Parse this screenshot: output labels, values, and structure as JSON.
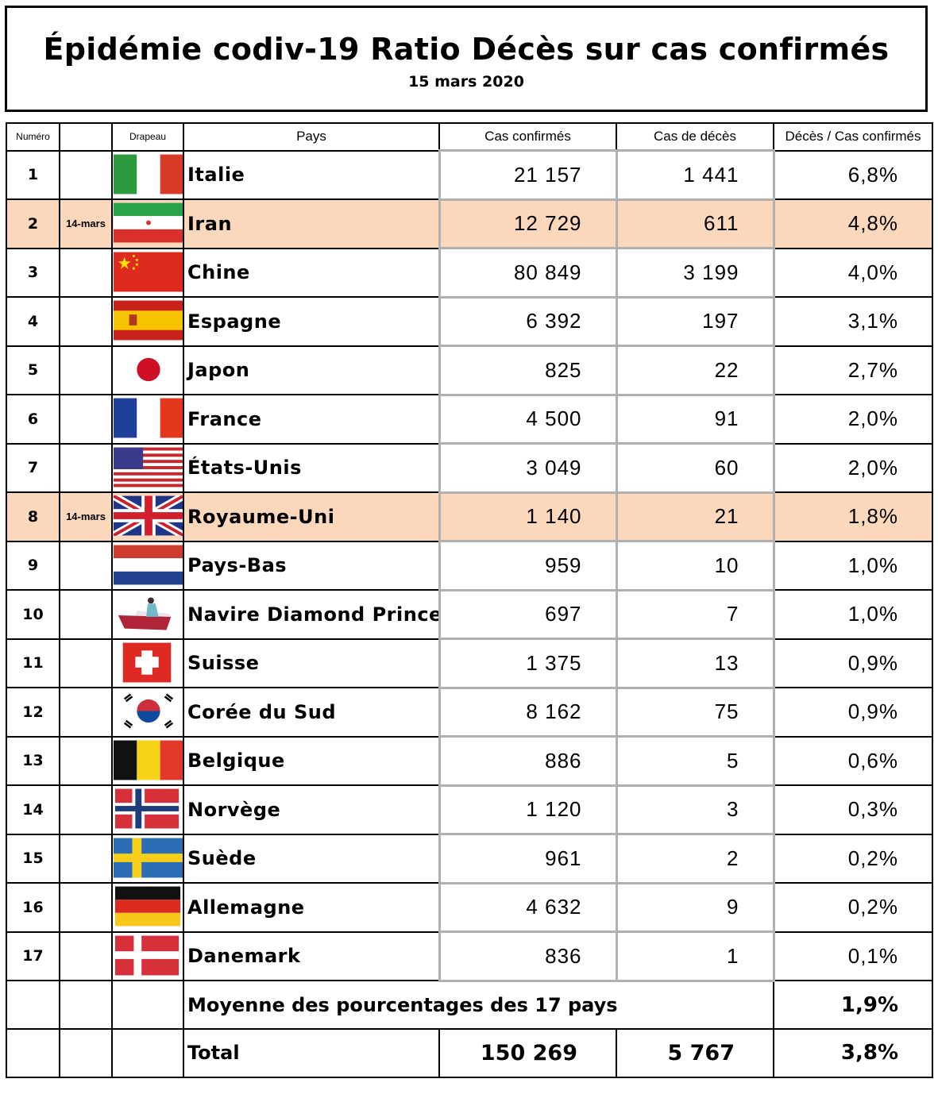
{
  "header": {
    "title": "Épidémie codiv-19  Ratio Décès sur cas confirmés",
    "date": "15 mars 2020"
  },
  "columns": {
    "numero": "Numéro",
    "drapeau": "Drapeau",
    "pays": "Pays",
    "cas_confirmes": "Cas confirmés",
    "cas_deces": "Cas de décès",
    "ratio": "Décès / Cas confirmés"
  },
  "rows": [
    {
      "num": "1",
      "date": "",
      "flag": "italy-flag",
      "country": "Italie",
      "cases": "21 157",
      "deaths": "1 441",
      "ratio": "6,8%"
    },
    {
      "num": "2",
      "date": "14-mars",
      "flag": "iran-flag",
      "country": "Iran",
      "cases": "12 729",
      "deaths": "611",
      "ratio": "4,8%"
    },
    {
      "num": "3",
      "date": "",
      "flag": "china-flag",
      "country": "Chine",
      "cases": "80 849",
      "deaths": "3 199",
      "ratio": "4,0%"
    },
    {
      "num": "4",
      "date": "",
      "flag": "spain-flag",
      "country": "Espagne",
      "cases": "6 392",
      "deaths": "197",
      "ratio": "3,1%"
    },
    {
      "num": "5",
      "date": "",
      "flag": "japan-flag",
      "country": "Japon",
      "cases": "825",
      "deaths": "22",
      "ratio": "2,7%"
    },
    {
      "num": "6",
      "date": "",
      "flag": "france-flag",
      "country": "France",
      "cases": "4 500",
      "deaths": "91",
      "ratio": "2,0%"
    },
    {
      "num": "7",
      "date": "",
      "flag": "usa-flag",
      "country": "États-Unis",
      "cases": "3 049",
      "deaths": "60",
      "ratio": "2,0%"
    },
    {
      "num": "8",
      "date": "14-mars",
      "flag": "uk-flag",
      "country": "Royaume-Uni",
      "cases": "1 140",
      "deaths": "21",
      "ratio": "1,8%"
    },
    {
      "num": "9",
      "date": "",
      "flag": "netherlands-flag",
      "country": "Pays-Bas",
      "cases": "959",
      "deaths": "10",
      "ratio": "1,0%"
    },
    {
      "num": "10",
      "date": "",
      "flag": "ship-icon",
      "country": "Navire Diamond Princess",
      "cases": "697",
      "deaths": "7",
      "ratio": "1,0%"
    },
    {
      "num": "11",
      "date": "",
      "flag": "switzerland-flag",
      "country": "Suisse",
      "cases": "1 375",
      "deaths": "13",
      "ratio": "0,9%"
    },
    {
      "num": "12",
      "date": "",
      "flag": "south-korea-flag",
      "country": "Corée du Sud",
      "cases": "8 162",
      "deaths": "75",
      "ratio": "0,9%"
    },
    {
      "num": "13",
      "date": "",
      "flag": "belgium-flag",
      "country": "Belgique",
      "cases": "886",
      "deaths": "5",
      "ratio": "0,6%"
    },
    {
      "num": "14",
      "date": "",
      "flag": "norway-flag",
      "country": "Norvège",
      "cases": "1 120",
      "deaths": "3",
      "ratio": "0,3%"
    },
    {
      "num": "15",
      "date": "",
      "flag": "sweden-flag",
      "country": "Suède",
      "cases": "961",
      "deaths": "2",
      "ratio": "0,2%"
    },
    {
      "num": "16",
      "date": "",
      "flag": "germany-flag",
      "country": "Allemagne",
      "cases": "4 632",
      "deaths": "9",
      "ratio": "0,2%"
    },
    {
      "num": "17",
      "date": "",
      "flag": "denmark-flag",
      "country": "Danemark",
      "cases": "836",
      "deaths": "1",
      "ratio": "0,1%"
    }
  ],
  "average": {
    "label": "Moyenne des pourcentages des 17 pays",
    "value": "1,9%"
  },
  "total": {
    "label": "Total",
    "cases": "150 269",
    "deaths": "5 767",
    "ratio": "3,8%"
  },
  "colors": {
    "highlight_row": "#fbd7bc"
  }
}
